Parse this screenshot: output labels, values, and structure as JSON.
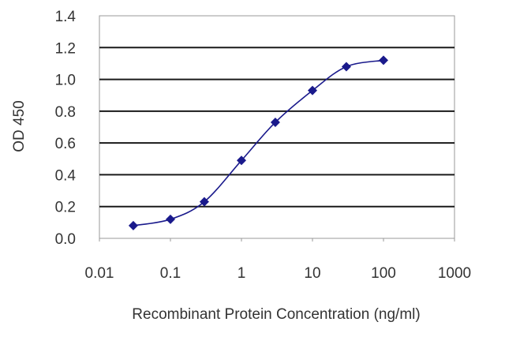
{
  "chart_data": {
    "type": "line",
    "title": "",
    "xlabel": "Recombinant Protein Concentration (ng/ml)",
    "ylabel": "OD 450",
    "x_scale": "log",
    "xlim": [
      0.01,
      1000
    ],
    "ylim": [
      0.0,
      1.4
    ],
    "x_ticks": [
      "0.01",
      "0.1",
      "1",
      "10",
      "100",
      "1000"
    ],
    "y_ticks": [
      "0.0",
      "0.2",
      "0.4",
      "0.6",
      "0.8",
      "1.0",
      "1.2",
      "1.4"
    ],
    "grid": "horizontal",
    "legend": "none",
    "series": [
      {
        "x": [
          0.03,
          0.1,
          0.3,
          1,
          3,
          10,
          30,
          100
        ],
        "y": [
          0.08,
          0.12,
          0.23,
          0.49,
          0.73,
          0.93,
          1.08,
          1.12
        ],
        "color": "#1a1a8c",
        "marker": "diamond"
      }
    ],
    "colors": {
      "plot_background": "#ffffff",
      "gridline": "#1a1a1a",
      "series": "#1a1a8c"
    }
  }
}
